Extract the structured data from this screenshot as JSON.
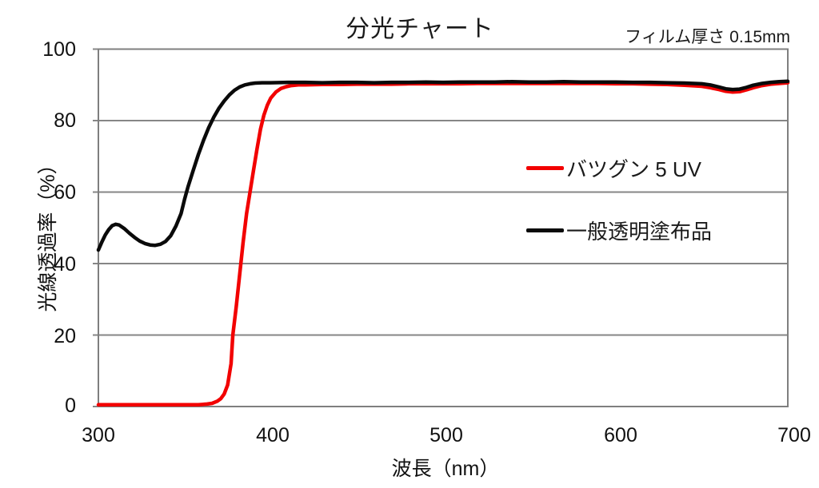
{
  "figure": {
    "title": "分光チャート",
    "subtitle": "フィルム厚さ 0.15mm"
  },
  "axes": {
    "x": {
      "label": "波長（nm）",
      "ticks": [
        "300",
        "400",
        "500",
        "600",
        "700"
      ]
    },
    "y": {
      "label": "光線透過率（%）",
      "ticks": [
        "100",
        "80",
        "60",
        "40",
        "20",
        "0"
      ]
    }
  },
  "legend": [
    {
      "label": "バツグン 5 UV",
      "color": "#f20000"
    },
    {
      "label": "一般透明塗布品",
      "color": "#0a0a0a"
    }
  ],
  "colors": {
    "series_red": "#f20000",
    "series_black": "#0a0a0a",
    "grid": "#868686",
    "border": "#7f7f7f",
    "background": "#ffffff"
  },
  "chart_data": {
    "type": "line",
    "title": "分光チャート",
    "annotation": "フィルム厚さ 0.15mm",
    "xlabel": "波長（nm）",
    "ylabel": "光線透過率（%）",
    "xlim": [
      300,
      700
    ],
    "ylim": [
      0,
      100
    ],
    "x_ticks": [
      300,
      400,
      500,
      600,
      700
    ],
    "y_ticks": [
      0,
      20,
      40,
      60,
      80,
      100
    ],
    "grid": "horizontal-only",
    "legend_position": "inside-right",
    "series": [
      {
        "name": "バツグン 5 UV",
        "color": "#f20000",
        "points": [
          [
            300,
            0.5
          ],
          [
            310,
            0.5
          ],
          [
            320,
            0.5
          ],
          [
            330,
            0.5
          ],
          [
            340,
            0.5
          ],
          [
            350,
            0.5
          ],
          [
            358,
            0.5
          ],
          [
            363,
            0.7
          ],
          [
            366,
            0.9
          ],
          [
            369,
            1.5
          ],
          [
            371,
            2.2
          ],
          [
            373,
            3.5
          ],
          [
            375,
            6
          ],
          [
            377,
            12
          ],
          [
            378,
            20
          ],
          [
            380,
            28
          ],
          [
            382,
            37
          ],
          [
            384,
            46
          ],
          [
            386,
            54
          ],
          [
            388,
            60
          ],
          [
            390,
            66
          ],
          [
            392,
            72
          ],
          [
            394,
            77.5
          ],
          [
            396,
            81.5
          ],
          [
            398,
            84.3
          ],
          [
            400,
            86.3
          ],
          [
            403,
            88
          ],
          [
            406,
            89
          ],
          [
            409,
            89.5
          ],
          [
            412,
            89.8
          ],
          [
            416,
            90
          ],
          [
            420,
            90
          ],
          [
            430,
            90.1
          ],
          [
            440,
            90.1
          ],
          [
            450,
            90.2
          ],
          [
            460,
            90.2
          ],
          [
            470,
            90.2
          ],
          [
            480,
            90.3
          ],
          [
            490,
            90.3
          ],
          [
            500,
            90.3
          ],
          [
            510,
            90.3
          ],
          [
            520,
            90.4
          ],
          [
            530,
            90.4
          ],
          [
            540,
            90.4
          ],
          [
            550,
            90.4
          ],
          [
            560,
            90.4
          ],
          [
            570,
            90.4
          ],
          [
            580,
            90.4
          ],
          [
            590,
            90.4
          ],
          [
            600,
            90.3
          ],
          [
            610,
            90.3
          ],
          [
            620,
            90.2
          ],
          [
            630,
            90.1
          ],
          [
            640,
            89.9
          ],
          [
            650,
            89.6
          ],
          [
            655,
            89.2
          ],
          [
            660,
            88.7
          ],
          [
            664,
            88.2
          ],
          [
            668,
            88.0
          ],
          [
            672,
            88.1
          ],
          [
            676,
            88.6
          ],
          [
            680,
            89.2
          ],
          [
            685,
            89.8
          ],
          [
            690,
            90.2
          ],
          [
            695,
            90.4
          ],
          [
            700,
            90.6
          ]
        ]
      },
      {
        "name": "一般透明塗布品",
        "color": "#0a0a0a",
        "points": [
          [
            300,
            43.8
          ],
          [
            302,
            46
          ],
          [
            304,
            48
          ],
          [
            306,
            49.5
          ],
          [
            308,
            50.6
          ],
          [
            310,
            51
          ],
          [
            312,
            50.8
          ],
          [
            315,
            49.8
          ],
          [
            318,
            48.5
          ],
          [
            321,
            47.3
          ],
          [
            324,
            46.3
          ],
          [
            327,
            45.6
          ],
          [
            330,
            45.2
          ],
          [
            333,
            45.1
          ],
          [
            336,
            45.4
          ],
          [
            339,
            46.2
          ],
          [
            342,
            47.8
          ],
          [
            345,
            50.5
          ],
          [
            348,
            54
          ],
          [
            350,
            58
          ],
          [
            352,
            61.5
          ],
          [
            355,
            66
          ],
          [
            358,
            70.5
          ],
          [
            361,
            74.5
          ],
          [
            364,
            78
          ],
          [
            367,
            81
          ],
          [
            370,
            83.5
          ],
          [
            373,
            85.5
          ],
          [
            376,
            87.2
          ],
          [
            379,
            88.5
          ],
          [
            382,
            89.4
          ],
          [
            385,
            90
          ],
          [
            388,
            90.3
          ],
          [
            391,
            90.5
          ],
          [
            395,
            90.6
          ],
          [
            400,
            90.6
          ],
          [
            410,
            90.7
          ],
          [
            420,
            90.7
          ],
          [
            430,
            90.6
          ],
          [
            440,
            90.7
          ],
          [
            450,
            90.7
          ],
          [
            460,
            90.6
          ],
          [
            470,
            90.7
          ],
          [
            480,
            90.7
          ],
          [
            490,
            90.8
          ],
          [
            500,
            90.7
          ],
          [
            510,
            90.8
          ],
          [
            520,
            90.8
          ],
          [
            530,
            90.8
          ],
          [
            540,
            90.9
          ],
          [
            550,
            90.8
          ],
          [
            560,
            90.8
          ],
          [
            570,
            90.9
          ],
          [
            580,
            90.8
          ],
          [
            590,
            90.8
          ],
          [
            600,
            90.8
          ],
          [
            610,
            90.7
          ],
          [
            620,
            90.7
          ],
          [
            630,
            90.6
          ],
          [
            640,
            90.5
          ],
          [
            650,
            90.3
          ],
          [
            655,
            90
          ],
          [
            660,
            89.4
          ],
          [
            664,
            88.9
          ],
          [
            668,
            88.7
          ],
          [
            672,
            88.8
          ],
          [
            676,
            89.3
          ],
          [
            680,
            89.9
          ],
          [
            685,
            90.4
          ],
          [
            690,
            90.7
          ],
          [
            695,
            90.9
          ],
          [
            700,
            91
          ]
        ]
      }
    ]
  }
}
